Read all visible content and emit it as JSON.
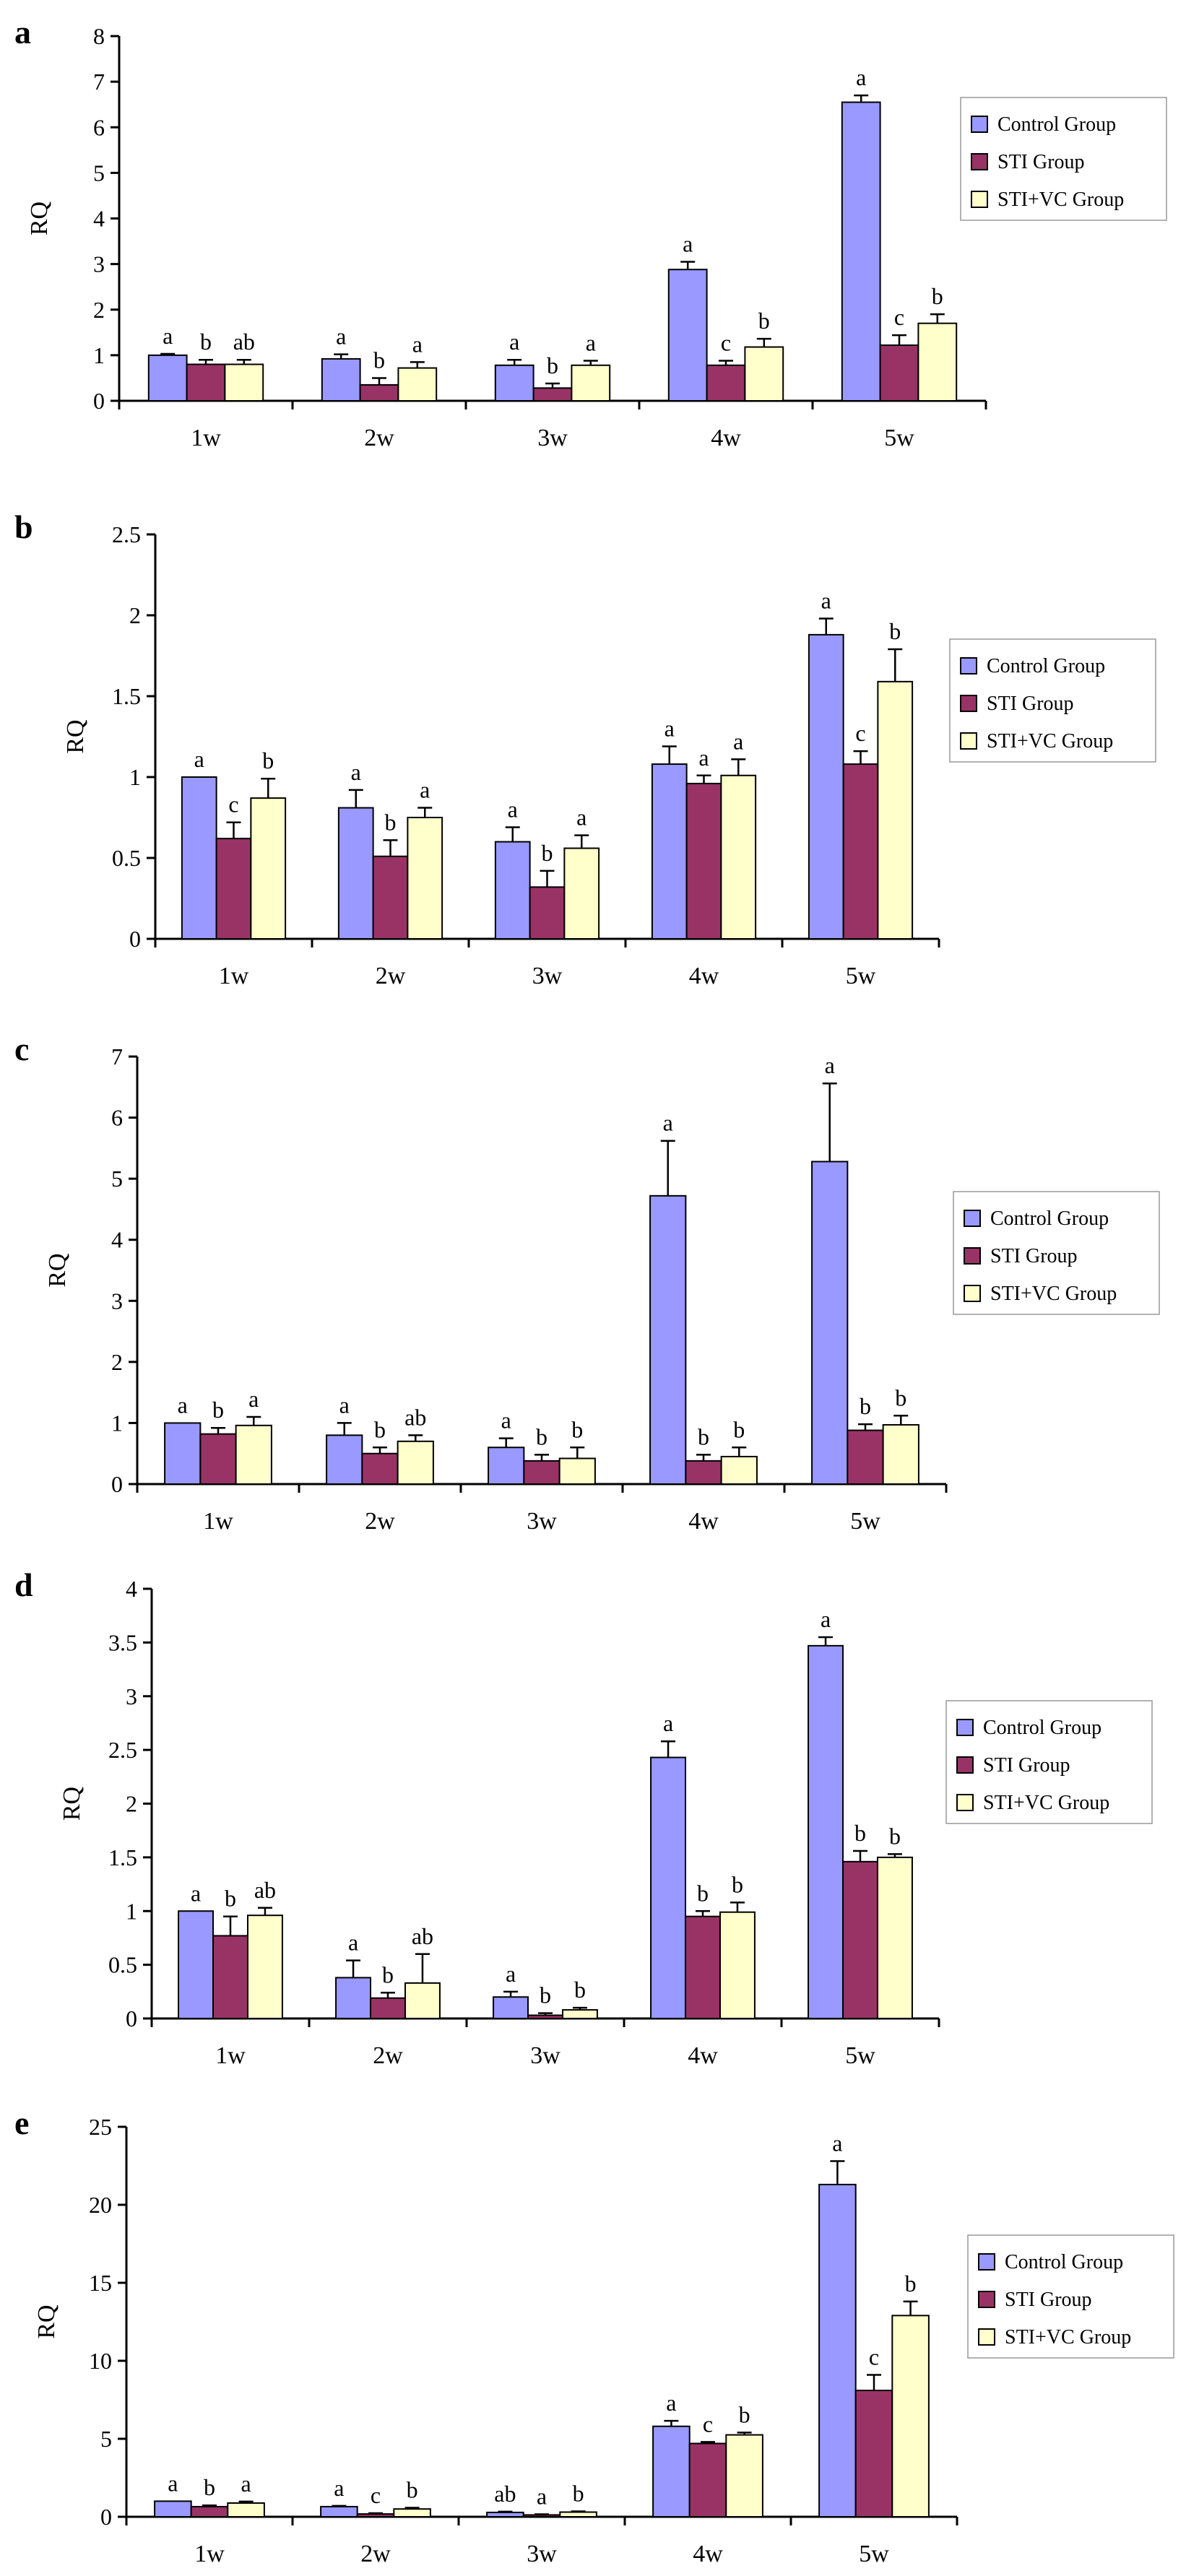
{
  "colors": {
    "control": "#9999ff",
    "sti": "#993366",
    "stivc": "#ffffcc",
    "axis": "#000000"
  },
  "chart_data": [
    {
      "panel": "a",
      "type": "bar",
      "ylabel": "RQ",
      "ylim": [
        0,
        8
      ],
      "yticks": [
        0,
        1,
        2,
        3,
        4,
        5,
        6,
        7,
        8
      ],
      "legend": "right",
      "categories": [
        "1w",
        "2w",
        "3w",
        "4w",
        "5w"
      ],
      "series": [
        {
          "name": "Control Group",
          "values": [
            1.0,
            0.92,
            0.78,
            2.88,
            6.55
          ],
          "errors": [
            0.03,
            0.1,
            0.12,
            0.17,
            0.15
          ],
          "letters": [
            "a",
            "a",
            "a",
            "a",
            "a"
          ]
        },
        {
          "name": "STI Group",
          "values": [
            0.8,
            0.35,
            0.28,
            0.78,
            1.22
          ],
          "errors": [
            0.1,
            0.15,
            0.1,
            0.1,
            0.22
          ],
          "letters": [
            "b",
            "b",
            "b",
            "c",
            "c"
          ]
        },
        {
          "name": "STI+VC Group",
          "values": [
            0.8,
            0.72,
            0.78,
            1.18,
            1.7
          ],
          "errors": [
            0.1,
            0.13,
            0.1,
            0.18,
            0.2
          ],
          "letters": [
            "ab",
            "a",
            "a",
            "b",
            "b"
          ]
        }
      ]
    },
    {
      "panel": "b",
      "type": "bar",
      "ylabel": "RQ",
      "ylim": [
        0,
        2.5
      ],
      "yticks": [
        0,
        0.5,
        1,
        1.5,
        2,
        2.5
      ],
      "legend": "right",
      "categories": [
        "1w",
        "2w",
        "3w",
        "4w",
        "5w"
      ],
      "series": [
        {
          "name": "Control Group",
          "values": [
            1.0,
            0.81,
            0.6,
            1.08,
            1.88
          ],
          "errors": [
            0.0,
            0.11,
            0.09,
            0.11,
            0.1
          ],
          "letters": [
            "a",
            "a",
            "a",
            "a",
            "a"
          ]
        },
        {
          "name": "STI Group",
          "values": [
            0.62,
            0.51,
            0.32,
            0.96,
            1.08
          ],
          "errors": [
            0.1,
            0.1,
            0.1,
            0.05,
            0.08
          ],
          "letters": [
            "c",
            "b",
            "b",
            "a",
            "c"
          ]
        },
        {
          "name": "STI+VC Group",
          "values": [
            0.87,
            0.75,
            0.56,
            1.01,
            1.59
          ],
          "errors": [
            0.12,
            0.06,
            0.08,
            0.1,
            0.2
          ],
          "letters": [
            "b",
            "a",
            "a",
            "a",
            "b"
          ]
        }
      ]
    },
    {
      "panel": "c",
      "type": "bar",
      "ylabel": "RQ",
      "ylim": [
        0,
        7
      ],
      "yticks": [
        0,
        1,
        2,
        3,
        4,
        5,
        6,
        7
      ],
      "legend": "right",
      "categories": [
        "1w",
        "2w",
        "3w",
        "4w",
        "5w"
      ],
      "series": [
        {
          "name": "Control Group",
          "values": [
            1.0,
            0.8,
            0.6,
            4.72,
            5.28
          ],
          "errors": [
            0.0,
            0.2,
            0.15,
            0.9,
            1.28
          ],
          "letters": [
            "a",
            "a",
            "a",
            "a",
            "a"
          ]
        },
        {
          "name": "STI Group",
          "values": [
            0.82,
            0.5,
            0.38,
            0.38,
            0.88
          ],
          "errors": [
            0.1,
            0.1,
            0.1,
            0.1,
            0.1
          ],
          "letters": [
            "b",
            "b",
            "b",
            "b",
            "b"
          ]
        },
        {
          "name": "STI+VC Group",
          "values": [
            0.96,
            0.7,
            0.42,
            0.45,
            0.97
          ],
          "errors": [
            0.14,
            0.1,
            0.18,
            0.15,
            0.15
          ],
          "letters": [
            "a",
            "ab",
            "b",
            "b",
            "b"
          ]
        }
      ]
    },
    {
      "panel": "d",
      "type": "bar",
      "ylabel": "RQ",
      "ylim": [
        0,
        4
      ],
      "yticks": [
        0,
        0.5,
        1,
        1.5,
        2,
        2.5,
        3,
        3.5,
        4
      ],
      "legend": "right",
      "categories": [
        "1w",
        "2w",
        "3w",
        "4w",
        "5w"
      ],
      "series": [
        {
          "name": "Control Group",
          "values": [
            1.0,
            0.38,
            0.2,
            2.43,
            3.47
          ],
          "errors": [
            0.0,
            0.16,
            0.05,
            0.15,
            0.08
          ],
          "letters": [
            "a",
            "a",
            "a",
            "a",
            "a"
          ]
        },
        {
          "name": "STI Group",
          "values": [
            0.77,
            0.19,
            0.03,
            0.95,
            1.46
          ],
          "errors": [
            0.18,
            0.05,
            0.02,
            0.05,
            0.1
          ],
          "letters": [
            "b",
            "b",
            "b",
            "b",
            "b"
          ]
        },
        {
          "name": "STI+VC Group",
          "values": [
            0.96,
            0.33,
            0.08,
            0.99,
            1.5
          ],
          "errors": [
            0.07,
            0.27,
            0.02,
            0.09,
            0.03
          ],
          "letters": [
            "ab",
            "ab",
            "b",
            "b",
            "b"
          ]
        }
      ]
    },
    {
      "panel": "e",
      "type": "bar",
      "ylabel": "RQ",
      "ylim": [
        0,
        25
      ],
      "yticks": [
        0,
        5,
        10,
        15,
        20,
        25
      ],
      "legend": "right",
      "categories": [
        "1w",
        "2w",
        "3w",
        "4w",
        "5w"
      ],
      "series": [
        {
          "name": "Control Group",
          "values": [
            1.0,
            0.65,
            0.28,
            5.8,
            21.3
          ],
          "errors": [
            0.0,
            0.05,
            0.05,
            0.35,
            1.5
          ],
          "letters": [
            "a",
            "a",
            "ab",
            "a",
            "a"
          ]
        },
        {
          "name": "STI Group",
          "values": [
            0.65,
            0.18,
            0.12,
            4.7,
            8.1
          ],
          "errors": [
            0.08,
            0.05,
            0.04,
            0.1,
            1.0
          ],
          "letters": [
            "b",
            "c",
            "a",
            "c",
            "c"
          ]
        },
        {
          "name": "STI+VC Group",
          "values": [
            0.88,
            0.5,
            0.3,
            5.25,
            12.9
          ],
          "errors": [
            0.1,
            0.08,
            0.05,
            0.15,
            0.9
          ],
          "letters": [
            "a",
            "b",
            "b",
            "b",
            "b"
          ]
        }
      ]
    }
  ]
}
